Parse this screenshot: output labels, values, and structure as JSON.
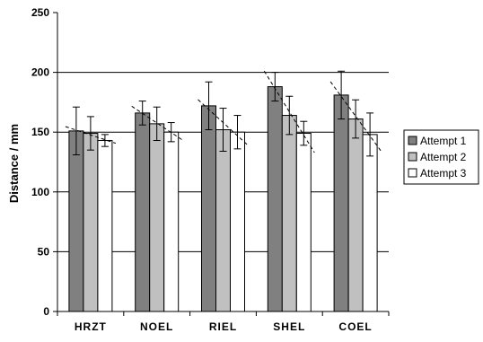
{
  "chart_data": {
    "type": "bar",
    "categories": [
      "HRZT",
      "NOEL",
      "RIEL",
      "SHEL",
      "COEL"
    ],
    "series": [
      {
        "name": "Attempt 1",
        "color": "#808080",
        "values": [
          151,
          166,
          172,
          188,
          181
        ],
        "errors": [
          20,
          10,
          20,
          12,
          20
        ]
      },
      {
        "name": "Attempt 2",
        "color": "#c0c0c0",
        "values": [
          149,
          157,
          152,
          164,
          161
        ],
        "errors": [
          14,
          14,
          18,
          16,
          16
        ]
      },
      {
        "name": "Attempt 3",
        "color": "#ffffff",
        "values": [
          143,
          150,
          150,
          149,
          148
        ],
        "errors": [
          5,
          8,
          14,
          10,
          18
        ]
      }
    ],
    "ylabel": "Distance / mm",
    "xlabel": "",
    "title": "",
    "ylim": [
      0,
      250
    ],
    "yticks": [
      0,
      50,
      100,
      150,
      200,
      250
    ],
    "gridlines": [
      50,
      100,
      150,
      200
    ],
    "trendlines": true,
    "legend_position": "right"
  }
}
